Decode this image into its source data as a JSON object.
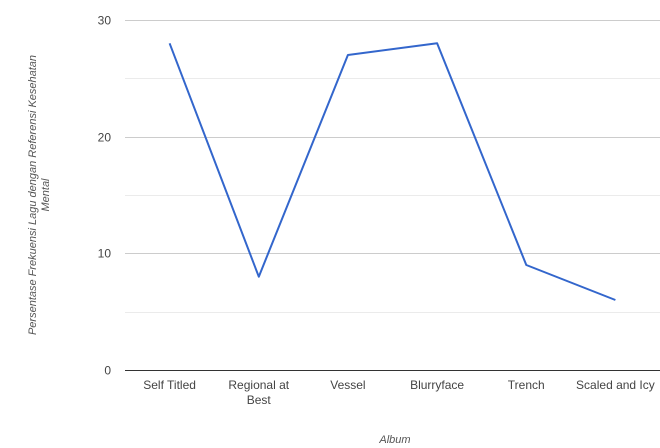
{
  "chart_data": {
    "type": "line",
    "categories": [
      [
        "Self Titled"
      ],
      [
        "Regional at",
        "Best"
      ],
      [
        "Vessel"
      ],
      [
        "Blurryface"
      ],
      [
        "Trench"
      ],
      [
        "Scaled and Icy"
      ]
    ],
    "series": [
      {
        "values": [
          28,
          8,
          27,
          28,
          9,
          6
        ]
      }
    ],
    "xlabel": "Album",
    "ylabel": [
      "Persentase Frekuensi Lagu dengan Referensi Kesehatan",
      "Mental"
    ],
    "ylim": [
      0,
      30
    ],
    "yticks": [
      0,
      10,
      20,
      30
    ],
    "grid": true,
    "minor_grid": true,
    "legend": "none",
    "colors": {
      "line": "#3366cc",
      "grid": "#cccccc",
      "minor_grid": "#ebebeb",
      "baseline": "#333333"
    }
  }
}
